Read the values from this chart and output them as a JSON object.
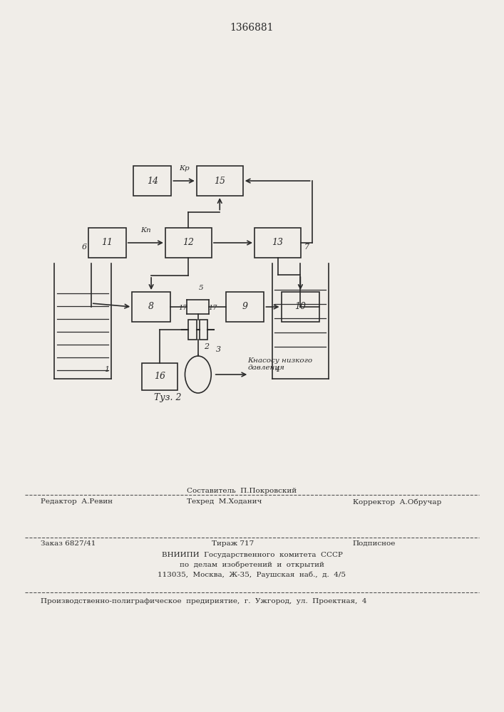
{
  "title": "1366881",
  "fig_label": "Τуз. 2",
  "bg_color": "#f0ede8",
  "line_color": "#2a2a2a",
  "pump_label": "Кнасосу низкого\nдавления",
  "footer_line1_left": "Редактор  А.Ревин",
  "footer_line1_center1": "Составитель  П.Покровский",
  "footer_line1_center2": "Техред  М.Ходанич",
  "footer_line1_right": "Корректор  А.Обручар",
  "footer_line2_left": "Заказ 6827/41",
  "footer_line2_center": "Тираж 717",
  "footer_line2_right": "Подписное",
  "footer_vniiipi": "ВНИИПИ  Государственного  комитета  СССР",
  "footer_po": "по  делам  изобретений  и  открытий",
  "footer_address": "113035,  Москва,  Ж-35,  Раушская  наб.,  д.  4/5",
  "footer_last": "Производственно-полиграфическое  предириятие,  г.  Ужгород,  ул.  Проектная,  4"
}
